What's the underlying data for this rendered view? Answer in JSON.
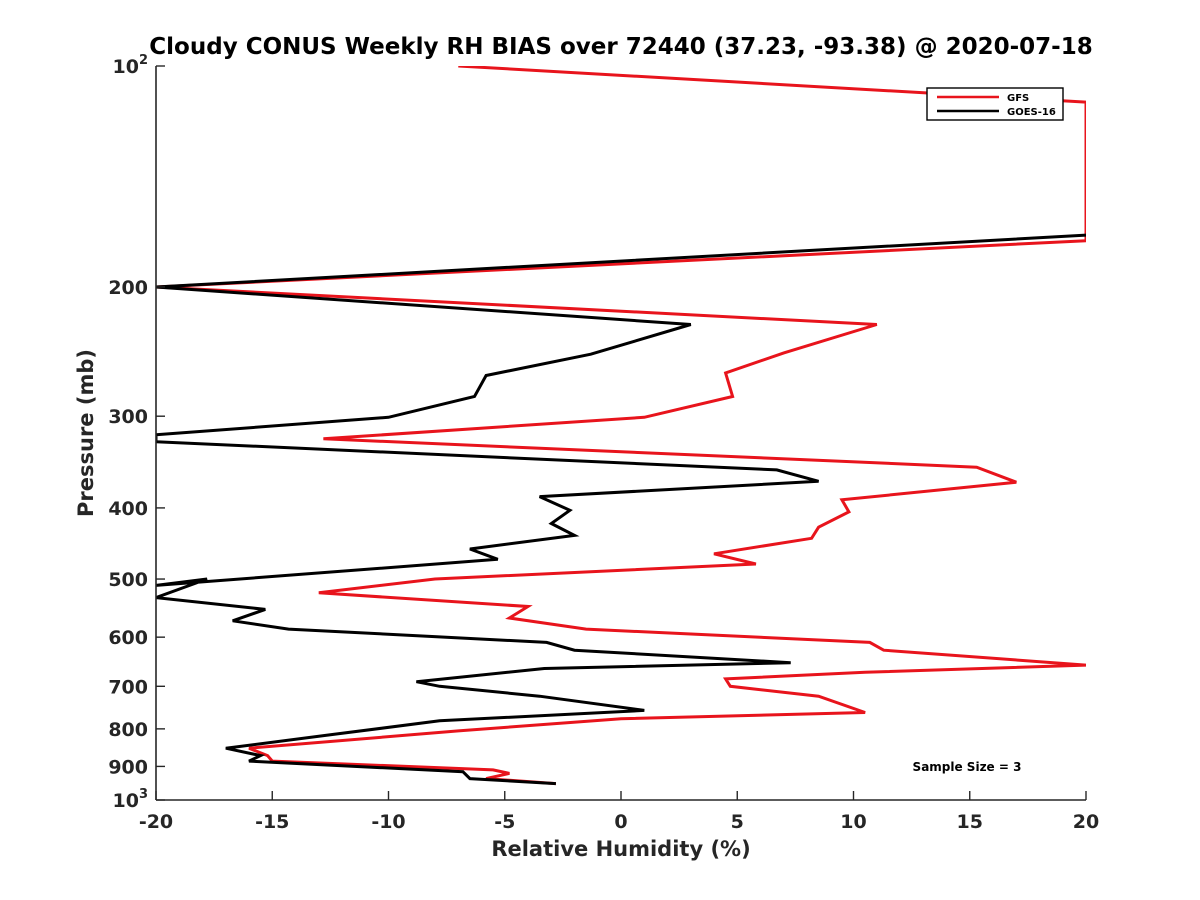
{
  "chart_data": {
    "type": "line",
    "title": "Cloudy CONUS Weekly RH BIAS over 72440 (37.23, -93.38) @ 2020-07-18",
    "xlabel": "Relative Humidity (%)",
    "ylabel": "Pressure (mb)",
    "xlim": [
      -20,
      20
    ],
    "ylim": [
      100,
      1000
    ],
    "y_scale": "log",
    "y_reversed": true,
    "grid": false,
    "x_ticks": [
      -20,
      -15,
      -10,
      -5,
      0,
      5,
      10,
      15,
      20
    ],
    "y_ticks": [
      {
        "value": 100,
        "label": "10",
        "sup": "2"
      },
      {
        "value": 200,
        "label": "200",
        "sup": ""
      },
      {
        "value": 300,
        "label": "300",
        "sup": ""
      },
      {
        "value": 400,
        "label": "400",
        "sup": ""
      },
      {
        "value": 500,
        "label": "500",
        "sup": ""
      },
      {
        "value": 600,
        "label": "600",
        "sup": ""
      },
      {
        "value": 700,
        "label": "700",
        "sup": ""
      },
      {
        "value": 800,
        "label": "800",
        "sup": ""
      },
      {
        "value": 900,
        "label": "900",
        "sup": ""
      },
      {
        "value": 1000,
        "label": "10",
        "sup": "3"
      }
    ],
    "legend_position": "top-right",
    "annotation": "Sample Size = 3",
    "series": [
      {
        "name": "GFS",
        "color": "#e8141c",
        "points": [
          [
            -7.0,
            100
          ],
          [
            20.0,
            112
          ],
          [
            20.0,
            173
          ],
          [
            -20.0,
            200
          ],
          [
            11.0,
            225
          ],
          [
            7.0,
            246
          ],
          [
            4.5,
            262
          ],
          [
            4.8,
            282
          ],
          [
            1.0,
            301
          ],
          [
            -12.8,
            322
          ],
          [
            15.3,
            352
          ],
          [
            17.0,
            369
          ],
          [
            9.5,
            390
          ],
          [
            9.8,
            405
          ],
          [
            8.5,
            425
          ],
          [
            8.2,
            440
          ],
          [
            4.0,
            462
          ],
          [
            5.8,
            477
          ],
          [
            -8.0,
            500
          ],
          [
            -13.0,
            522
          ],
          [
            -4.0,
            545
          ],
          [
            -4.8,
            565
          ],
          [
            -1.5,
            585
          ],
          [
            10.7,
            610
          ],
          [
            11.3,
            625
          ],
          [
            20.0,
            655
          ],
          [
            10.5,
            670
          ],
          [
            4.5,
            684
          ],
          [
            4.7,
            700
          ],
          [
            8.5,
            722
          ],
          [
            10.5,
            760
          ],
          [
            0.0,
            775
          ],
          [
            -7.0,
            805
          ],
          [
            -16.0,
            850
          ],
          [
            -15.2,
            870
          ],
          [
            -15.0,
            885
          ],
          [
            -5.5,
            910
          ],
          [
            -4.8,
            920
          ],
          [
            -5.8,
            935
          ],
          [
            -2.8,
            950
          ]
        ]
      },
      {
        "name": "GOES-16",
        "color": "#000000",
        "points": [
          [
            20.0,
            170
          ],
          [
            -20.0,
            200
          ],
          [
            3.0,
            225
          ],
          [
            -1.3,
            247
          ],
          [
            -5.8,
            264
          ],
          [
            -6.3,
            282
          ],
          [
            -10.0,
            301
          ],
          [
            -20.0,
            318
          ],
          [
            -20.0,
            325
          ],
          [
            6.7,
            355
          ],
          [
            8.5,
            368
          ],
          [
            -3.5,
            386
          ],
          [
            -2.2,
            403
          ],
          [
            -3.0,
            420
          ],
          [
            -2.0,
            436
          ],
          [
            -6.5,
            455
          ],
          [
            -5.3,
            470
          ],
          [
            -20.0,
            510
          ],
          [
            -17.8,
            500
          ],
          [
            -20.0,
            530
          ],
          [
            -15.3,
            550
          ],
          [
            -16.7,
            570
          ],
          [
            -14.3,
            585
          ],
          [
            -3.2,
            610
          ],
          [
            -2.0,
            625
          ],
          [
            7.3,
            650
          ],
          [
            -3.3,
            662
          ],
          [
            -8.8,
            690
          ],
          [
            -7.8,
            700
          ],
          [
            -3.5,
            722
          ],
          [
            1.0,
            755
          ],
          [
            -7.8,
            780
          ],
          [
            -12.5,
            815
          ],
          [
            -17.0,
            850
          ],
          [
            -15.5,
            870
          ],
          [
            -16.0,
            885
          ],
          [
            -6.8,
            915
          ],
          [
            -6.5,
            935
          ],
          [
            -2.8,
            950
          ]
        ]
      }
    ]
  }
}
